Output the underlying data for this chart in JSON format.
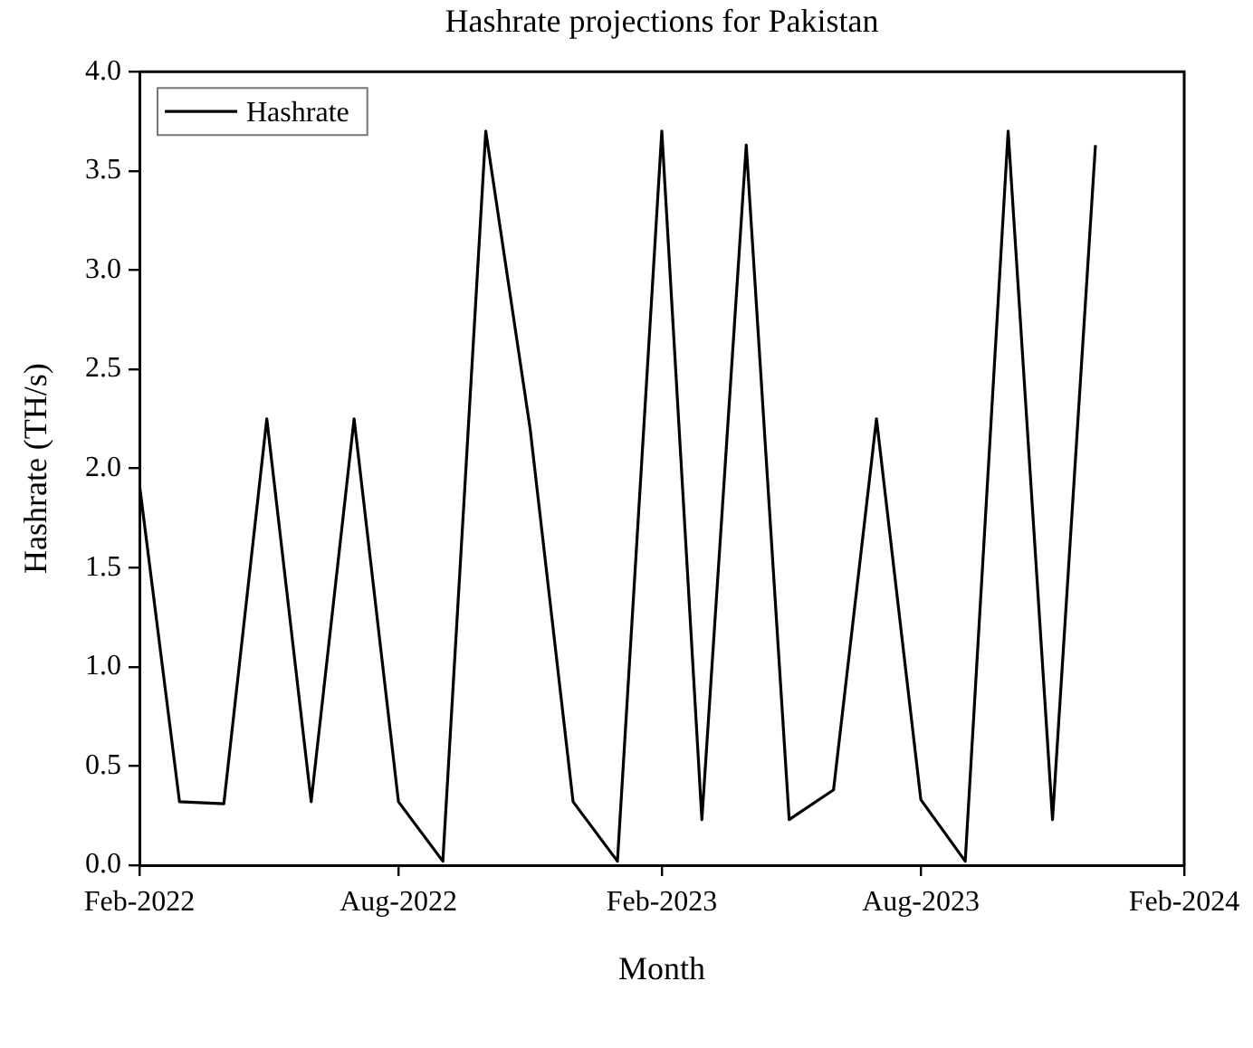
{
  "chart_data": {
    "type": "line",
    "title": "Hashrate projections for Pakistan",
    "xlabel": "Month",
    "ylabel": "Hashrate (TH/s)",
    "x": [
      "2022-02",
      "2022-03",
      "2022-04",
      "2022-05",
      "2022-06",
      "2022-07",
      "2022-08",
      "2022-09",
      "2022-10",
      "2022-11",
      "2022-12",
      "2023-01",
      "2023-02",
      "2023-03",
      "2023-04",
      "2023-05",
      "2023-06",
      "2023-07",
      "2023-08",
      "2023-09",
      "2023-10",
      "2023-11",
      "2023-12"
    ],
    "series": [
      {
        "name": "Hashrate",
        "color": "#000000",
        "values": [
          1.92,
          0.32,
          0.31,
          2.25,
          0.32,
          2.25,
          0.32,
          0.02,
          3.7,
          2.2,
          0.32,
          0.02,
          3.7,
          0.23,
          3.63,
          0.23,
          0.38,
          2.25,
          0.33,
          0.02,
          3.7,
          0.23,
          3.63
        ]
      }
    ],
    "xlim": [
      "2022-02",
      "2024-02"
    ],
    "xticks": [
      {
        "value": "2022-02",
        "label": "Feb-2022"
      },
      {
        "value": "2022-08",
        "label": "Aug-2022"
      },
      {
        "value": "2023-02",
        "label": "Feb-2023"
      },
      {
        "value": "2023-08",
        "label": "Aug-2023"
      },
      {
        "value": "2024-02",
        "label": "Feb-2024"
      }
    ],
    "ylim": [
      0,
      4
    ],
    "yticks": [
      {
        "value": 0,
        "label": "0.0"
      },
      {
        "value": 0.5,
        "label": "0.5"
      },
      {
        "value": 1,
        "label": "1.0"
      },
      {
        "value": 1.5,
        "label": "1.5"
      },
      {
        "value": 2,
        "label": "2.0"
      },
      {
        "value": 2.5,
        "label": "2.5"
      },
      {
        "value": 3,
        "label": "3.0"
      },
      {
        "value": 3.5,
        "label": "3.5"
      },
      {
        "value": 4,
        "label": "4.0"
      }
    ],
    "legend": "top left"
  }
}
